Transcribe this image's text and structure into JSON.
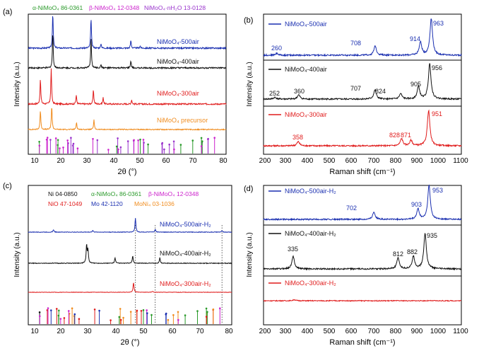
{
  "chart_data": [
    {
      "id": "a",
      "type": "line",
      "panel_label": "(a)",
      "xlabel": "2θ (°)",
      "ylabel": "Intensity (a.u.)",
      "xlim": [
        5,
        80
      ],
      "xticks": [
        "10",
        "20",
        "30",
        "40",
        "50",
        "60",
        "70",
        "80"
      ],
      "ref_legend": [
        {
          "text": "α-NiMoO₄ 86-0361",
          "color": "#2a9a2a"
        },
        {
          "text": "β-NiMoO₄ 12-0348",
          "color": "#cc22cc"
        },
        {
          "text": "NiMoO₄·nH₂O 13-0128",
          "color": "#9933cc"
        }
      ],
      "series": [
        {
          "name": "NiMoO₄-500air",
          "color": "#1a2fb0",
          "peaks": [
            [
              14.3,
              1.0
            ],
            [
              28.8,
              0.85
            ],
            [
              32.6,
              0.12
            ],
            [
              43.9,
              0.22
            ],
            [
              47.4,
              0.06
            ]
          ]
        },
        {
          "name": "NiMoO₄-400air",
          "color": "#111111",
          "peaks": [
            [
              14.3,
              1.0
            ],
            [
              28.8,
              0.85
            ],
            [
              32.6,
              0.1
            ],
            [
              43.9,
              0.2
            ]
          ]
        },
        {
          "name": "NiMoO₄-300air",
          "color": "#e01c1c",
          "peaks": [
            [
              9.6,
              0.7
            ],
            [
              13.7,
              1.0
            ],
            [
              23.2,
              0.25
            ],
            [
              29.7,
              0.4
            ],
            [
              33.4,
              0.18
            ],
            [
              44.2,
              0.12
            ]
          ]
        },
        {
          "name": "NiMoO₄ precursor",
          "color": "#f08c1e",
          "peaks": [
            [
              9.6,
              0.8
            ],
            [
              13.9,
              1.0
            ],
            [
              23.3,
              0.3
            ],
            [
              29.9,
              0.4
            ]
          ]
        }
      ]
    },
    {
      "id": "b",
      "type": "line",
      "panel_label": "(b)",
      "xlabel": "Raman shift (cm⁻¹)",
      "ylabel": "Intensity (a.u.)",
      "xlim": [
        200,
        1100
      ],
      "xticks": [
        "200",
        "300",
        "400",
        "500",
        "600",
        "700",
        "800",
        "900",
        "1000",
        "1100"
      ],
      "series": [
        {
          "name": "NiMoO₄-500air",
          "color": "#1a2fb0",
          "labels": [
            "260",
            "708",
            "914",
            "963"
          ],
          "peaks": [
            [
              260,
              0.05
            ],
            [
              708,
              0.25
            ],
            [
              914,
              0.35
            ],
            [
              963,
              1.0
            ]
          ]
        },
        {
          "name": "NiMoO₄-400air",
          "color": "#111111",
          "labels": [
            "252",
            "360",
            "707",
            "824",
            "905",
            "956"
          ],
          "peaks": [
            [
              252,
              0.05
            ],
            [
              360,
              0.12
            ],
            [
              707,
              0.25
            ],
            [
              824,
              0.15
            ],
            [
              905,
              0.35
            ],
            [
              956,
              1.0
            ]
          ]
        },
        {
          "name": "NiMoO₄-300air",
          "color": "#e01c1c",
          "labels": [
            "358",
            "828",
            "871",
            "951"
          ],
          "peaks": [
            [
              358,
              0.12
            ],
            [
              828,
              0.2
            ],
            [
              871,
              0.15
            ],
            [
              951,
              1.0
            ]
          ]
        }
      ]
    },
    {
      "id": "c",
      "type": "line",
      "panel_label": "(c)",
      "xlabel": "2θ (°)",
      "ylabel": "Intensity (a.u.)",
      "xlim": [
        5,
        80
      ],
      "xticks": [
        "10",
        "20",
        "30",
        "40",
        "50",
        "60",
        "70",
        "80"
      ],
      "ref_legend": [
        {
          "text": "Ni 04-0850",
          "color": "#111111"
        },
        {
          "text": "α-NiMoO₄ 86-0361",
          "color": "#2a9a2a"
        },
        {
          "text": "β-NiMoO₄ 12-0348",
          "color": "#cc22cc"
        },
        {
          "text": "NiO 47-1049",
          "color": "#e01c1c"
        },
        {
          "text": "Mo 42-1120",
          "color": "#1a2fb0"
        },
        {
          "text": "MoNi₄ 03-1036",
          "color": "#f08c1e"
        }
      ],
      "ref_lines": [
        44.5,
        51.8,
        76.4
      ],
      "series": [
        {
          "name": "NiMoO₄-500air-H₂",
          "color": "#1a2fb0",
          "peaks": [
            [
              14.3,
              0.18
            ],
            [
              28.8,
              0.12
            ],
            [
              44.5,
              1.0
            ],
            [
              51.8,
              0.2
            ],
            [
              76.4,
              0.1
            ]
          ]
        },
        {
          "name": "NiMoO₄-400air-H₂",
          "color": "#111111",
          "peaks": [
            [
              26.5,
              1.0
            ],
            [
              27.0,
              0.7
            ],
            [
              37.0,
              0.3
            ],
            [
              43.5,
              0.4
            ],
            [
              53.5,
              0.3
            ]
          ]
        },
        {
          "name": "NiMoO₄-300air-H₂",
          "color": "#e01c1c",
          "peaks": [
            [
              43.8,
              1.0
            ],
            [
              50.8,
              0.1
            ]
          ]
        }
      ]
    },
    {
      "id": "d",
      "type": "line",
      "panel_label": "(d)",
      "xlabel": "Raman shift (cm⁻¹)",
      "ylabel": "Intensity (a.u.)",
      "xlim": [
        200,
        1100
      ],
      "xticks": [
        "200",
        "300",
        "400",
        "500",
        "600",
        "700",
        "800",
        "900",
        "1000",
        "1100"
      ],
      "series": [
        {
          "name": "NiMoO₄-500air-H₂",
          "color": "#1a2fb0",
          "labels": [
            "702",
            "903",
            "953"
          ],
          "peaks": [
            [
              702,
              0.22
            ],
            [
              903,
              0.3
            ],
            [
              953,
              1.0
            ]
          ]
        },
        {
          "name": "NiMoO₄-400air-H₂",
          "color": "#111111",
          "labels": [
            "335",
            "812",
            "882",
            "935"
          ],
          "peaks": [
            [
              335,
              0.35
            ],
            [
              812,
              0.3
            ],
            [
              882,
              0.35
            ],
            [
              935,
              1.0
            ]
          ]
        },
        {
          "name": "NiMoO₄-300air-H₂",
          "color": "#e01c1c",
          "labels": [],
          "peaks": [
            [
              340,
              0.05
            ]
          ]
        }
      ]
    }
  ]
}
